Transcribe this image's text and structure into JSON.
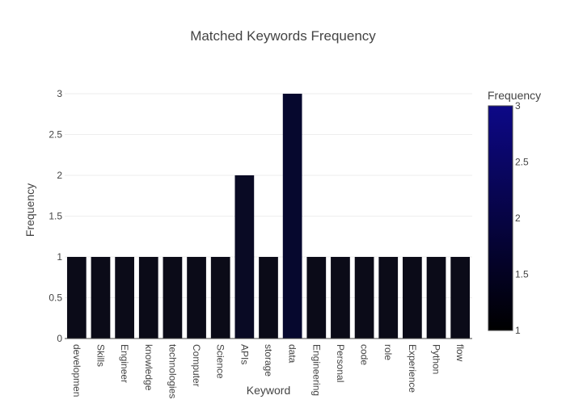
{
  "chart_data": {
    "type": "bar",
    "title": "Matched Keywords Frequency",
    "xlabel": "Keyword",
    "ylabel": "Frequency",
    "categories": [
      "developmen",
      "Skills",
      "Engineer",
      "knowledge",
      "technologies",
      "Computer",
      "Science",
      "APIs",
      "storage",
      "data",
      "Engineering",
      "Personal",
      "code",
      "role",
      "Experience",
      "Python",
      "flow"
    ],
    "values": [
      1,
      1,
      1,
      1,
      1,
      1,
      1,
      2,
      1,
      3,
      1,
      1,
      1,
      1,
      1,
      1,
      1
    ],
    "ylim": [
      0,
      3
    ],
    "yticks": [
      0,
      0.5,
      1,
      1.5,
      2,
      2.5,
      3
    ],
    "grid": true,
    "colorbar": {
      "title": "Frequency",
      "ticks": [
        1,
        1.5,
        2,
        2.5,
        3
      ],
      "range": [
        1,
        3
      ],
      "colors": [
        "#0d0887",
        "#000000"
      ]
    },
    "colors": {
      "low": "#0b0b18",
      "mid": "#090a24",
      "high": "#06082e",
      "axis": "#444444",
      "grid": "#eeeeee"
    }
  }
}
